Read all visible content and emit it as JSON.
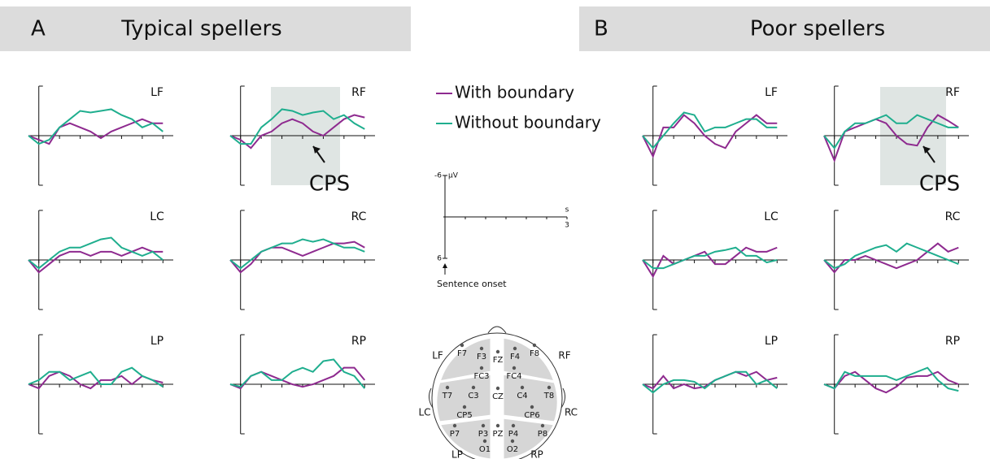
{
  "chart_data": {
    "type": "line",
    "groups": [
      {
        "letter": "A",
        "title": "Typical spellers"
      },
      {
        "letter": "B",
        "title": "Poor spellers"
      }
    ],
    "series": [
      {
        "name": "With boundary",
        "color": "#8e2a8f"
      },
      {
        "name": "Without boundary",
        "color": "#1fae8e"
      }
    ],
    "x": [
      -0.25,
      0,
      0.25,
      0.5,
      0.75,
      1,
      1.25,
      1.5,
      1.75,
      2,
      2.25,
      2.5,
      2.75,
      3
    ],
    "xlim": [
      -0.25,
      3.25
    ],
    "ylim": [
      6,
      -6
    ],
    "xticks": [
      0,
      0.5,
      1,
      1.5,
      2,
      2.5,
      3
    ],
    "yticks": [
      -6,
      6
    ],
    "annotation": "CPS",
    "panels": [
      {
        "label": "LF",
        "values": [
          [
            0,
            0.5,
            1,
            -1,
            -1.5,
            -1,
            -0.5,
            0.3,
            -0.5,
            -1,
            -1.5,
            -2,
            -1.5,
            -1.5
          ],
          [
            0,
            1,
            0.5,
            -1,
            -2,
            -3,
            -2.8,
            -3,
            -3.2,
            -2.5,
            -2,
            -1,
            -1.5,
            -0.5
          ]
        ]
      },
      {
        "label": "RF",
        "values": [
          [
            0,
            0.5,
            1.5,
            0,
            -0.5,
            -1.5,
            -2,
            -1.5,
            -0.5,
            0,
            -1,
            -2,
            -2.5,
            -2.2
          ],
          [
            0,
            1,
            1,
            -1,
            -2,
            -3.2,
            -3,
            -2.5,
            -2.8,
            -3,
            -2,
            -2.5,
            -1.5,
            -0.8
          ]
        ]
      },
      {
        "label": "LC",
        "values": [
          [
            0,
            1.5,
            0.5,
            -0.5,
            -1,
            -1,
            -0.5,
            -1,
            -1,
            -0.5,
            -1,
            -1.5,
            -1,
            -1
          ],
          [
            0,
            1,
            0,
            -1,
            -1.5,
            -1.5,
            -2,
            -2.5,
            -2.7,
            -1.5,
            -1,
            -0.5,
            -1,
            0
          ]
        ]
      },
      {
        "label": "RC",
        "values": [
          [
            0,
            1.5,
            0.5,
            -1,
            -1.5,
            -1.5,
            -1,
            -0.5,
            -1,
            -1.5,
            -2,
            -2,
            -2.2,
            -1.5
          ],
          [
            0,
            1,
            0,
            -1,
            -1.5,
            -2,
            -2,
            -2.5,
            -2.2,
            -2.5,
            -2,
            -1.5,
            -1.5,
            -1
          ]
        ]
      },
      {
        "label": "LP",
        "values": [
          [
            0,
            0.5,
            -1,
            -1.5,
            -1,
            0,
            0.5,
            -0.5,
            -0.5,
            -1,
            0,
            -1,
            -0.5,
            -0.2
          ],
          [
            0,
            -0.5,
            -1.5,
            -1.5,
            -0.5,
            -1,
            -1.5,
            0,
            0,
            -1.5,
            -2,
            -1,
            -0.5,
            0.3
          ]
        ]
      },
      {
        "label": "RP",
        "values": [
          [
            0,
            0.5,
            -1,
            -1.5,
            -1,
            -0.5,
            0,
            0.3,
            0,
            -0.5,
            -1,
            -2,
            -2,
            -0.5
          ],
          [
            0,
            0.3,
            -1,
            -1.5,
            -0.5,
            -0.5,
            -1.5,
            -2,
            -1.5,
            -2.8,
            -3,
            -1.5,
            -1,
            0.5
          ]
        ]
      },
      {
        "label": "LF",
        "values": [
          [
            0,
            2.5,
            -1,
            -1,
            -2.5,
            -1.5,
            0,
            1,
            1.5,
            -0.5,
            -1.5,
            -2.5,
            -1.5,
            -1.5
          ],
          [
            0,
            1.5,
            0,
            -1.5,
            -2.8,
            -2.5,
            -0.5,
            -1,
            -1,
            -1.5,
            -2,
            -2,
            -1,
            -1
          ]
        ]
      },
      {
        "label": "RF",
        "values": [
          [
            0,
            3,
            -0.5,
            -1,
            -1.5,
            -2,
            -1.5,
            0,
            1,
            1.2,
            -1,
            -2.5,
            -1.8,
            -1
          ],
          [
            0,
            1.5,
            -0.5,
            -1.5,
            -1.5,
            -2,
            -2.5,
            -1.5,
            -1.5,
            -2.5,
            -2,
            -1.5,
            -1,
            -1
          ]
        ]
      },
      {
        "label": "LC",
        "values": [
          [
            0,
            2,
            -0.5,
            0.5,
            0,
            -0.5,
            -1,
            0.5,
            0.5,
            -0.5,
            -1.5,
            -1,
            -1,
            -1.5
          ],
          [
            0,
            1,
            1,
            0.5,
            0,
            -0.5,
            -0.5,
            -1,
            -1.2,
            -1.5,
            -0.5,
            -0.5,
            0.3,
            0
          ]
        ]
      },
      {
        "label": "RC",
        "values": [
          [
            0,
            1.5,
            0,
            0,
            -0.5,
            0,
            0.5,
            1,
            0.5,
            0,
            -1,
            -2,
            -1,
            -1.5
          ],
          [
            0,
            1,
            0.5,
            -0.5,
            -1,
            -1.5,
            -1.8,
            -1,
            -2,
            -1.5,
            -1,
            -0.5,
            0,
            0.5
          ]
        ]
      },
      {
        "label": "LP",
        "values": [
          [
            0,
            0.5,
            -1,
            0.5,
            0,
            0.5,
            0.3,
            -0.5,
            -1,
            -1.5,
            -1,
            -1.5,
            -0.5,
            -0.8
          ],
          [
            0,
            1,
            0,
            -0.5,
            -0.5,
            -0.3,
            0.5,
            -0.5,
            -1,
            -1.5,
            -1.5,
            0,
            -0.5,
            0.5
          ]
        ]
      },
      {
        "label": "RP",
        "values": [
          [
            0,
            0.5,
            -1,
            -1.5,
            -0.5,
            0.5,
            1,
            0.3,
            -0.8,
            -1,
            -1,
            -1.5,
            -0.5,
            0
          ],
          [
            0,
            0.5,
            -1.5,
            -1,
            -1,
            -1,
            -1,
            -0.5,
            -1,
            -1.5,
            -2,
            -0.5,
            0.5,
            0.8
          ]
        ]
      }
    ],
    "scale": {
      "y_unit": "µV",
      "x_unit": "s",
      "yticks": [
        -6,
        6
      ],
      "xticks": [
        3
      ],
      "note": "Sentence onset"
    }
  },
  "head": {
    "regions": [
      "LF",
      "RF",
      "LC",
      "RC",
      "LP",
      "RP"
    ],
    "electrodes": [
      "F7",
      "F3",
      "FZ",
      "F4",
      "F8",
      "FC3",
      "FC4",
      "T7",
      "C3",
      "CZ",
      "C4",
      "T8",
      "CP5",
      "CP6",
      "P7",
      "P3",
      "PZ",
      "P4",
      "P8",
      "O1",
      "O2"
    ]
  }
}
